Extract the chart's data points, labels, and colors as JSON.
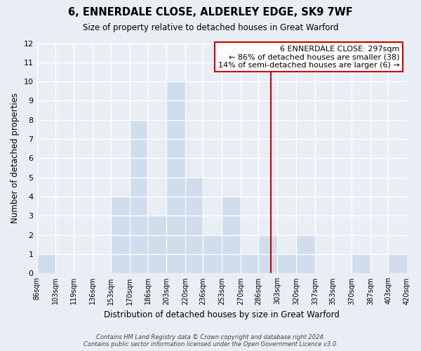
{
  "title": "6, ENNERDALE CLOSE, ALDERLEY EDGE, SK9 7WF",
  "subtitle": "Size of property relative to detached houses in Great Warford",
  "xlabel": "Distribution of detached houses by size in Great Warford",
  "ylabel": "Number of detached properties",
  "bar_color": "#cfdded",
  "bar_edge_color": "#7aaac8",
  "bin_labels": [
    "86sqm",
    "103sqm",
    "119sqm",
    "136sqm",
    "153sqm",
    "170sqm",
    "186sqm",
    "203sqm",
    "220sqm",
    "236sqm",
    "253sqm",
    "270sqm",
    "286sqm",
    "303sqm",
    "320sqm",
    "337sqm",
    "353sqm",
    "370sqm",
    "387sqm",
    "403sqm",
    "420sqm"
  ],
  "bin_edges": [
    86,
    103,
    119,
    136,
    153,
    170,
    186,
    203,
    220,
    236,
    253,
    270,
    286,
    303,
    320,
    337,
    353,
    370,
    387,
    403,
    420
  ],
  "bar_heights": [
    1,
    0,
    0,
    0,
    4,
    8,
    3,
    10,
    5,
    2,
    4,
    1,
    2,
    1,
    2,
    0,
    0,
    1,
    0,
    1,
    0
  ],
  "ylim": [
    0,
    12
  ],
  "yticks": [
    0,
    1,
    2,
    3,
    4,
    5,
    6,
    7,
    8,
    9,
    10,
    11,
    12
  ],
  "property_size": 297,
  "vline_color": "#cc0000",
  "annotation_line1": "6 ENNERDALE CLOSE: 297sqm",
  "annotation_line2": "← 86% of detached houses are smaller (38)",
  "annotation_line3": "14% of semi-detached houses are larger (6) →",
  "footer_text": "Contains HM Land Registry data © Crown copyright and database right 2024.\nContains public sector information licensed under the Open Government Licence v3.0.",
  "background_color": "#e8eef4",
  "grid_color": "#ffffff"
}
